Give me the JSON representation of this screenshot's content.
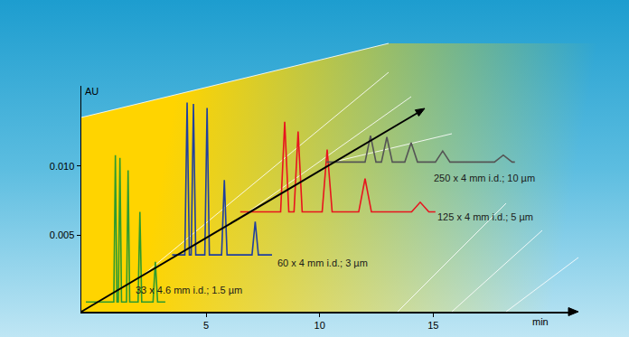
{
  "chart_data": {
    "type": "line",
    "xlabel": "min",
    "ylabel": "AU",
    "xlim": [
      -0.5,
      21
    ],
    "xticks": [
      5,
      10,
      15
    ],
    "ylim": [
      -0.0005,
      0.0158
    ],
    "yticks": [
      0.005,
      {
        "value": 0.01,
        "label": "0.010"
      }
    ],
    "grid": false,
    "series": [
      {
        "name": "33 x 4.6 mm i.d.; 1.5 µm",
        "color": "#2e9b2e",
        "x": [
          -0.3,
          0.93,
          1.0,
          1.07,
          1.13,
          1.2,
          1.27,
          1.49,
          1.56,
          1.63,
          2.0,
          2.08,
          2.16,
          2.66,
          2.76,
          2.86,
          3.2
        ],
        "values": [
          0.0002,
          0.0002,
          0.0108,
          0.0002,
          0.0002,
          0.0106,
          0.0002,
          0.0002,
          0.0097,
          0.0002,
          0.0002,
          0.0067,
          0.0002,
          0.0002,
          0.0031,
          0.0002,
          0.0002
        ]
      },
      {
        "name": "60 x 4 mm i.d.; 3 µm",
        "color": "#1f3fa0",
        "x": [
          3.5,
          4.06,
          4.16,
          4.26,
          4.34,
          4.44,
          4.54,
          4.94,
          5.04,
          5.14,
          5.68,
          5.8,
          5.92,
          7.02,
          7.16,
          7.3,
          7.9
        ],
        "values": [
          0.0036,
          0.0036,
          0.0146,
          0.0036,
          0.0036,
          0.0145,
          0.0036,
          0.0036,
          0.0142,
          0.0036,
          0.0036,
          0.009,
          0.0036,
          0.0036,
          0.006,
          0.0036,
          0.0036
        ]
      },
      {
        "name": "125 x 4 mm i.d.; 5 µm",
        "color": "#e8141e",
        "x": [
          6.5,
          8.28,
          8.46,
          8.64,
          8.87,
          9.05,
          9.23,
          10.11,
          10.33,
          10.55,
          11.72,
          12.0,
          12.28,
          14.05,
          14.43,
          14.81,
          15.1
        ],
        "values": [
          0.0067,
          0.0067,
          0.0132,
          0.0067,
          0.0067,
          0.0125,
          0.0067,
          0.0067,
          0.0112,
          0.0067,
          0.0067,
          0.0091,
          0.0067,
          0.0067,
          0.0074,
          0.0067,
          0.0067
        ]
      },
      {
        "name": "250 x 4 mm i.d.; 10 µm",
        "color": "#555555",
        "x": [
          10.3,
          12.0,
          12.24,
          12.48,
          12.72,
          12.96,
          13.2,
          13.75,
          14.03,
          14.31,
          15.1,
          15.42,
          15.74,
          17.7,
          18.09,
          18.48,
          18.6
        ],
        "values": [
          0.0103,
          0.0103,
          0.0122,
          0.0103,
          0.0103,
          0.0121,
          0.0103,
          0.0103,
          0.0117,
          0.0103,
          0.0103,
          0.0111,
          0.0103,
          0.0103,
          0.0108,
          0.0103,
          0.0103
        ]
      }
    ]
  }
}
